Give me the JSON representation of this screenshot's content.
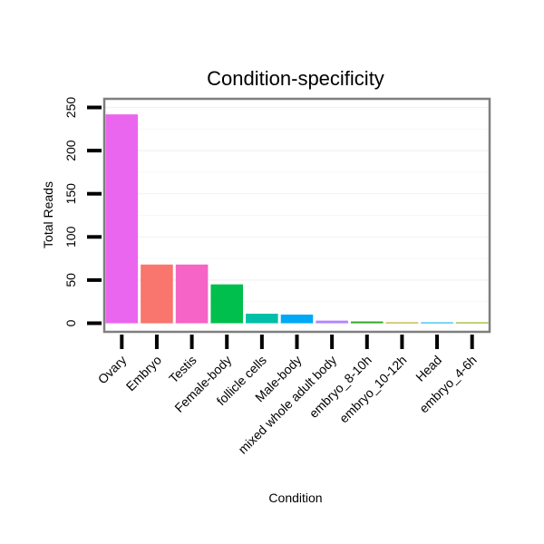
{
  "chart_data": {
    "type": "bar",
    "title": "Condition-specificity",
    "xlabel": "Condition",
    "ylabel": "Total Reads",
    "ylim": [
      -10,
      260
    ],
    "yticks": [
      0,
      50,
      100,
      150,
      200,
      250
    ],
    "grid": true,
    "categories": [
      "Ovary",
      "Embryo",
      "Testis",
      "Female-body",
      "follicle cells",
      "Male-body",
      "mixed whole adult body",
      "embryo_8-10h",
      "embryo_10-12h",
      "Head",
      "embryo_4-6h"
    ],
    "values": [
      242,
      68,
      68,
      45,
      11,
      10,
      3,
      2,
      1,
      1,
      1
    ],
    "colors": [
      "#EB66EE",
      "#F8766D",
      "#F564C6",
      "#00BF4D",
      "#00BFA8",
      "#00A9F5",
      "#B385FF",
      "#2DA628",
      "#B79F00",
      "#00B6EA",
      "#8FA600"
    ]
  }
}
